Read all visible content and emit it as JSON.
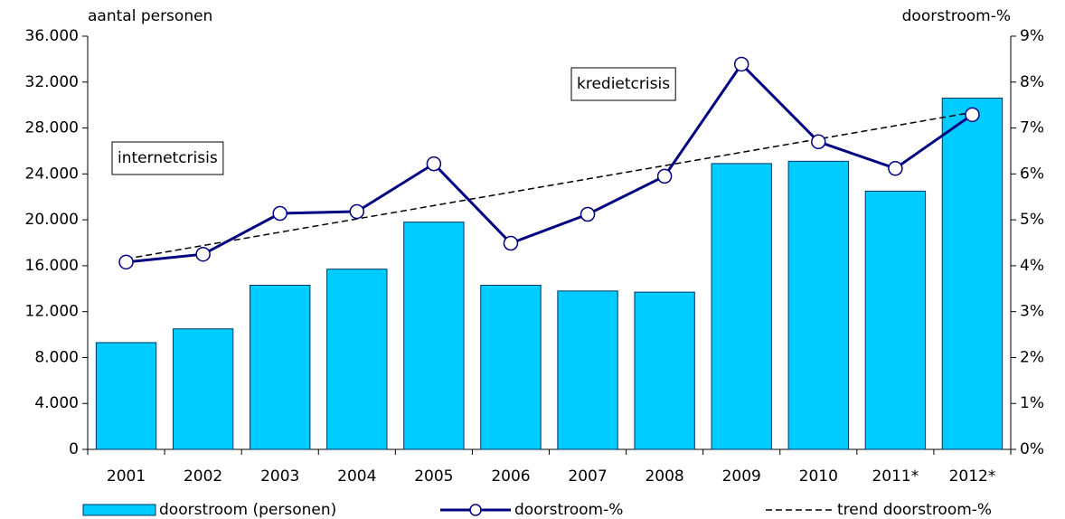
{
  "chart_data": {
    "type": "bar",
    "y_label": "aantal personen",
    "y2_label": "doorstroom-%",
    "categories": [
      "2001",
      "2002",
      "2003",
      "2004",
      "2005",
      "2006",
      "2007",
      "2008",
      "2009",
      "2010",
      "2011*",
      "2012*"
    ],
    "series": [
      {
        "name": "doorstroom (personen)",
        "type": "bar",
        "color": "#00ccff",
        "axis": "y",
        "values": [
          9300,
          10500,
          14300,
          15700,
          19800,
          14300,
          13800,
          13700,
          24900,
          25100,
          22500,
          30600
        ]
      },
      {
        "name": "doorstroom-%",
        "type": "line",
        "marker": "circle",
        "color": "#000080",
        "axis": "y2",
        "values": [
          4.08,
          4.25,
          5.14,
          5.18,
          6.22,
          4.49,
          5.12,
          5.95,
          8.39,
          6.7,
          6.12,
          7.29
        ]
      },
      {
        "name": "trend doorstroom-%",
        "type": "line",
        "dashed": true,
        "color": "#000000",
        "axis": "y2",
        "values": [
          4.15,
          4.44,
          4.73,
          5.02,
          5.31,
          5.6,
          5.89,
          6.18,
          6.47,
          6.76,
          7.05,
          7.34
        ]
      }
    ],
    "ylim": [
      0,
      36000
    ],
    "yticks": [
      0,
      {
        "value": 4000,
        "label": "4.000"
      },
      {
        "value": 8000,
        "label": "8.000"
      },
      {
        "value": 12000,
        "label": "12.000"
      },
      {
        "value": 16000,
        "label": "16.000"
      },
      {
        "value": 20000,
        "label": "20.000"
      },
      {
        "value": 24000,
        "label": "24.000"
      },
      {
        "value": 28000,
        "label": "28.000"
      },
      {
        "value": 32000,
        "label": "32.000"
      },
      {
        "value": 36000,
        "label": "36.000"
      }
    ],
    "y2lim": [
      0,
      9
    ],
    "y2ticks": [
      {
        "value": 0,
        "label": "0%"
      },
      {
        "value": 1,
        "label": "1%"
      },
      {
        "value": 2,
        "label": "2%"
      },
      {
        "value": 3,
        "label": "3%"
      },
      {
        "value": 4,
        "label": "4%"
      },
      {
        "value": 5,
        "label": "5%"
      },
      {
        "value": 6,
        "label": "6%"
      },
      {
        "value": 7,
        "label": "7%"
      },
      {
        "value": 8,
        "label": "8%"
      },
      {
        "value": 9,
        "label": "9%"
      }
    ],
    "annotations": [
      {
        "text": "internetcrisis"
      },
      {
        "text": "kredietcrisis"
      }
    ],
    "grid": false,
    "legend": "bottom"
  }
}
